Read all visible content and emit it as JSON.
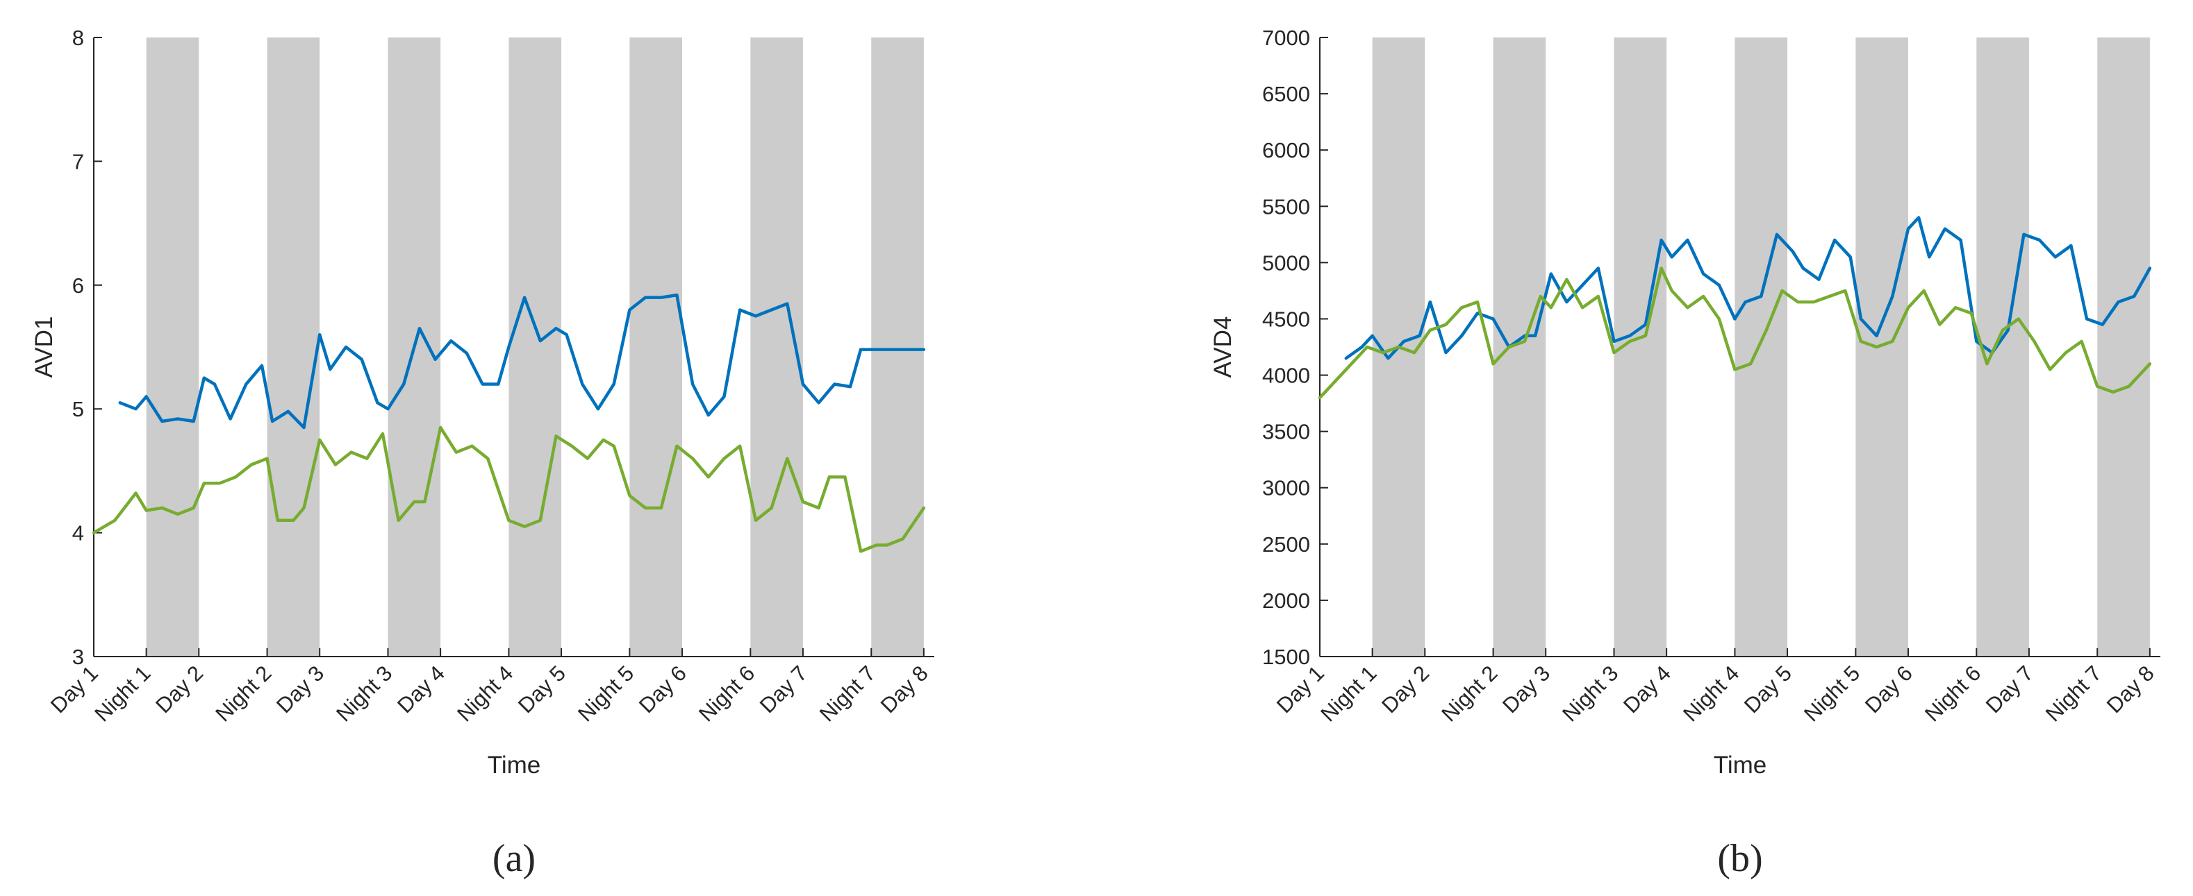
{
  "chart_data": [
    {
      "type": "line",
      "panel_label": "(a)",
      "xlabel": "Time",
      "ylabel": "AVD1",
      "ylim": [
        3,
        8
      ],
      "yticks": [
        3,
        4,
        5,
        6,
        7,
        8
      ],
      "xlim": [
        0,
        16
      ],
      "x_unit": "half-day periods from Day 1",
      "xtick_labels": [
        "Day 1",
        "Night 1",
        "Day 2",
        "Night 2",
        "Day 3",
        "Night 3",
        "Day 4",
        "Night 4",
        "Day 5",
        "Night 5",
        "Day 6",
        "Night 6",
        "Day 7",
        "Night 7",
        "Day 8"
      ],
      "xtick_positions": [
        0,
        1,
        2,
        3.3,
        4.3,
        5.6,
        6.6,
        7.9,
        8.9,
        10.2,
        11.2,
        12.5,
        13.5,
        14.8,
        15.8
      ],
      "night_bands": [
        [
          1,
          2
        ],
        [
          3.3,
          4.3
        ],
        [
          5.6,
          6.6
        ],
        [
          7.9,
          8.9
        ],
        [
          10.2,
          11.2
        ],
        [
          12.5,
          13.5
        ],
        [
          14.8,
          15.8
        ]
      ],
      "grid": false,
      "legend": "none",
      "series": [
        {
          "color": "#0072BD",
          "x": [
            0.5,
            0.8,
            1.0,
            1.3,
            1.6,
            1.9,
            2.1,
            2.3,
            2.6,
            2.9,
            3.2,
            3.4,
            3.7,
            4.0,
            4.3,
            4.5,
            4.8,
            5.1,
            5.4,
            5.6,
            5.9,
            6.2,
            6.5,
            6.8,
            7.1,
            7.4,
            7.7,
            7.9,
            8.2,
            8.5,
            8.8,
            9.0,
            9.3,
            9.6,
            9.9,
            10.2,
            10.5,
            10.8,
            11.1,
            11.4,
            11.7,
            12.0,
            12.3,
            12.6,
            12.9,
            13.2,
            13.5,
            13.8,
            14.1,
            14.4,
            14.6,
            14.9,
            15.2,
            15.5,
            15.8
          ],
          "y": [
            5.05,
            5.0,
            5.1,
            4.9,
            4.92,
            4.9,
            5.25,
            5.2,
            4.92,
            5.2,
            5.35,
            4.9,
            4.98,
            4.85,
            5.6,
            5.32,
            5.5,
            5.4,
            5.05,
            5.0,
            5.2,
            5.65,
            5.4,
            5.55,
            5.45,
            5.2,
            5.2,
            5.5,
            5.9,
            5.55,
            5.65,
            5.6,
            5.2,
            5.0,
            5.2,
            5.8,
            5.9,
            5.9,
            5.92,
            5.2,
            4.95,
            5.1,
            5.8,
            5.75,
            5.8,
            5.85,
            5.2,
            5.05,
            5.2,
            5.18,
            5.48,
            5.48,
            5.48,
            5.48,
            5.48
          ]
        },
        {
          "color": "#77AC30",
          "x": [
            0.0,
            0.4,
            0.8,
            1.0,
            1.3,
            1.6,
            1.9,
            2.1,
            2.4,
            2.7,
            3.0,
            3.3,
            3.5,
            3.8,
            4.0,
            4.3,
            4.6,
            4.9,
            5.2,
            5.5,
            5.8,
            6.1,
            6.3,
            6.6,
            6.9,
            7.2,
            7.5,
            7.9,
            8.2,
            8.5,
            8.8,
            9.1,
            9.4,
            9.7,
            9.9,
            10.2,
            10.5,
            10.8,
            11.1,
            11.4,
            11.7,
            12.0,
            12.3,
            12.6,
            12.9,
            13.2,
            13.5,
            13.8,
            14.0,
            14.3,
            14.6,
            14.9,
            15.1,
            15.4,
            15.8
          ],
          "y": [
            4.0,
            4.1,
            4.32,
            4.18,
            4.2,
            4.15,
            4.2,
            4.4,
            4.4,
            4.45,
            4.55,
            4.6,
            4.1,
            4.1,
            4.2,
            4.75,
            4.55,
            4.65,
            4.6,
            4.8,
            4.1,
            4.25,
            4.25,
            4.85,
            4.65,
            4.7,
            4.6,
            4.1,
            4.05,
            4.1,
            4.78,
            4.7,
            4.6,
            4.75,
            4.7,
            4.3,
            4.2,
            4.2,
            4.7,
            4.6,
            4.45,
            4.6,
            4.7,
            4.1,
            4.2,
            4.6,
            4.25,
            4.2,
            4.45,
            4.45,
            3.85,
            3.9,
            3.9,
            3.95,
            4.2
          ]
        }
      ]
    },
    {
      "type": "line",
      "panel_label": "(b)",
      "xlabel": "Time",
      "ylabel": "AVD4",
      "ylim": [
        1500,
        7000
      ],
      "yticks": [
        1500,
        2000,
        2500,
        3000,
        3500,
        4000,
        4500,
        5000,
        5500,
        6000,
        6500,
        7000
      ],
      "xlim": [
        0,
        16
      ],
      "x_unit": "half-day periods from Day 1",
      "xtick_labels": [
        "Day 1",
        "Night 1",
        "Day 2",
        "Night 2",
        "Day 3",
        "Night 3",
        "Day 4",
        "Night 4",
        "Day 5",
        "Night 5",
        "Day 6",
        "Night 6",
        "Day 7",
        "Night 7",
        "Day 8"
      ],
      "xtick_positions": [
        0,
        1,
        2,
        3.3,
        4.3,
        5.6,
        6.6,
        7.9,
        8.9,
        10.2,
        11.2,
        12.5,
        13.5,
        14.8,
        15.8
      ],
      "night_bands": [
        [
          1,
          2
        ],
        [
          3.3,
          4.3
        ],
        [
          5.6,
          6.6
        ],
        [
          7.9,
          8.9
        ],
        [
          10.2,
          11.2
        ],
        [
          12.5,
          13.5
        ],
        [
          14.8,
          15.8
        ]
      ],
      "grid": false,
      "legend": "none",
      "series": [
        {
          "color": "#0072BD",
          "x": [
            0.5,
            0.8,
            1.0,
            1.3,
            1.6,
            1.9,
            2.1,
            2.4,
            2.7,
            3.0,
            3.3,
            3.6,
            3.9,
            4.1,
            4.4,
            4.7,
            5.0,
            5.3,
            5.6,
            5.9,
            6.2,
            6.5,
            6.7,
            7.0,
            7.3,
            7.6,
            7.9,
            8.1,
            8.4,
            8.7,
            9.0,
            9.2,
            9.5,
            9.8,
            10.1,
            10.3,
            10.6,
            10.9,
            11.2,
            11.4,
            11.6,
            11.9,
            12.2,
            12.5,
            12.8,
            13.1,
            13.4,
            13.7,
            14.0,
            14.3,
            14.6,
            14.9,
            15.2,
            15.5,
            15.8
          ],
          "y": [
            4150,
            4250,
            4350,
            4150,
            4300,
            4350,
            4650,
            4200,
            4350,
            4550,
            4500,
            4250,
            4350,
            4350,
            4900,
            4650,
            4800,
            4950,
            4300,
            4350,
            4450,
            5200,
            5050,
            5200,
            4900,
            4800,
            4500,
            4650,
            4700,
            5250,
            5100,
            4950,
            4850,
            5200,
            5050,
            4500,
            4350,
            4700,
            5300,
            5400,
            5050,
            5300,
            5200,
            4300,
            4200,
            4400,
            5250,
            5200,
            5050,
            5150,
            4500,
            4450,
            4650,
            4700,
            4950
          ]
        },
        {
          "color": "#77AC30",
          "x": [
            0.0,
            0.3,
            0.6,
            0.9,
            1.2,
            1.5,
            1.8,
            2.1,
            2.4,
            2.7,
            3.0,
            3.3,
            3.6,
            3.9,
            4.2,
            4.4,
            4.7,
            5.0,
            5.3,
            5.6,
            5.9,
            6.2,
            6.5,
            6.7,
            7.0,
            7.3,
            7.6,
            7.9,
            8.2,
            8.5,
            8.8,
            9.1,
            9.4,
            9.7,
            10.0,
            10.3,
            10.6,
            10.9,
            11.2,
            11.5,
            11.8,
            12.1,
            12.4,
            12.7,
            13.0,
            13.3,
            13.6,
            13.9,
            14.2,
            14.5,
            14.8,
            15.1,
            15.4,
            15.8
          ],
          "y": [
            3800,
            3950,
            4100,
            4250,
            4200,
            4250,
            4200,
            4400,
            4450,
            4600,
            4650,
            4100,
            4250,
            4300,
            4700,
            4600,
            4850,
            4600,
            4700,
            4200,
            4300,
            4350,
            4950,
            4750,
            4600,
            4700,
            4500,
            4050,
            4100,
            4400,
            4750,
            4650,
            4650,
            4700,
            4750,
            4300,
            4250,
            4300,
            4600,
            4750,
            4450,
            4600,
            4550,
            4100,
            4400,
            4500,
            4300,
            4050,
            4200,
            4300,
            3900,
            3850,
            3900,
            4100
          ]
        }
      ]
    }
  ]
}
